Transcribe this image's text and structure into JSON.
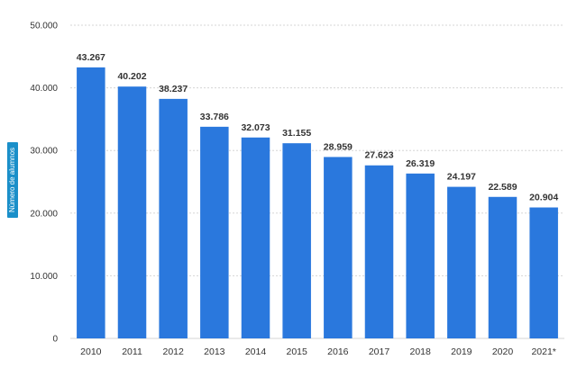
{
  "chart_data": {
    "type": "bar",
    "title": "",
    "xlabel": "",
    "ylabel": "Número de alumnos",
    "categories": [
      "2010",
      "2011",
      "2012",
      "2013",
      "2014",
      "2015",
      "2016",
      "2017",
      "2018",
      "2019",
      "2020",
      "2021*"
    ],
    "values": [
      43267,
      40202,
      38237,
      33786,
      32073,
      31155,
      28959,
      27623,
      26319,
      24197,
      22589,
      20904
    ],
    "value_labels": [
      "43.267",
      "40.202",
      "38.237",
      "33.786",
      "32.073",
      "31.155",
      "28.959",
      "27.623",
      "26.319",
      "24.197",
      "22.589",
      "20.904"
    ],
    "ylim": [
      0,
      50000
    ],
    "yticks": [
      0,
      10000,
      20000,
      30000,
      40000,
      50000
    ],
    "ytick_labels": [
      "0",
      "10.000",
      "20.000",
      "30.000",
      "40.000",
      "50.000"
    ],
    "grid": true,
    "legend": "none",
    "colors": {
      "bar": "#2a78dd",
      "grid": "#d5d5d5",
      "ylabel_badge": "#1a8fc9"
    }
  }
}
